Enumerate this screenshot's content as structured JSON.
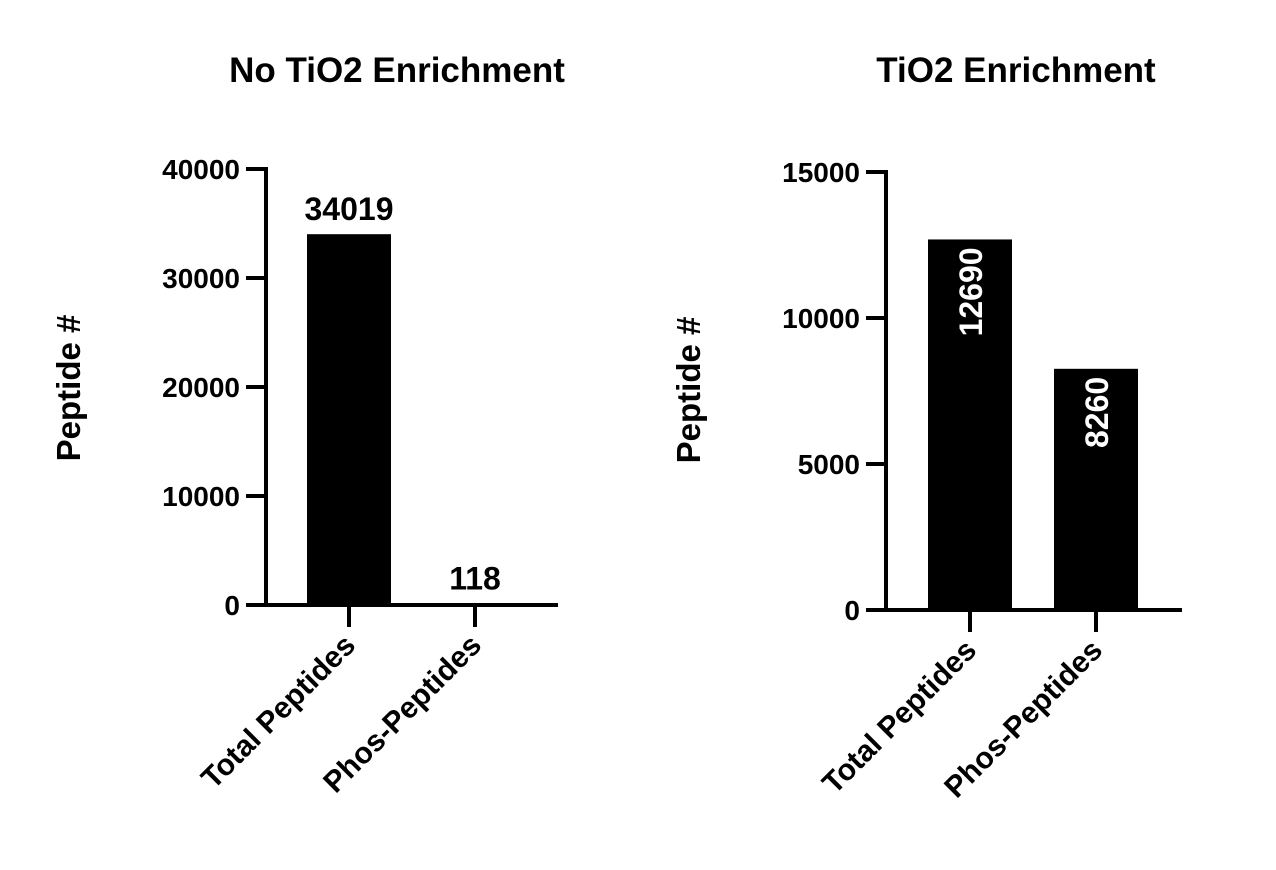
{
  "chart_data": [
    {
      "type": "bar",
      "title": "No TiO2 Enrichment",
      "xlabel": "",
      "ylabel": "Peptide #",
      "categories": [
        "Total Peptides",
        "Phos-Peptides"
      ],
      "values": [
        34019,
        118
      ],
      "data_labels": [
        "34019",
        "118"
      ],
      "data_label_placement": "above",
      "ylim": [
        0,
        40000
      ],
      "yticks": [
        0,
        10000,
        20000,
        30000,
        40000
      ],
      "ytick_labels": [
        "0",
        "10000",
        "20000",
        "30000",
        "40000"
      ],
      "grid": false,
      "legend": "none",
      "bar_color": "#000000"
    },
    {
      "type": "bar",
      "title": "TiO2 Enrichment",
      "xlabel": "",
      "ylabel": "Peptide #",
      "categories": [
        "Total Peptides",
        "Phos-Peptides"
      ],
      "values": [
        12690,
        8260
      ],
      "data_labels": [
        "12690",
        "8260"
      ],
      "data_label_placement": "inside-vertical",
      "ylim": [
        0,
        15000
      ],
      "yticks": [
        0,
        5000,
        10000,
        15000
      ],
      "ytick_labels": [
        "0",
        "5000",
        "10000",
        "15000"
      ],
      "grid": false,
      "legend": "none",
      "bar_color": "#000000",
      "data_label_color": "#ffffff"
    }
  ]
}
